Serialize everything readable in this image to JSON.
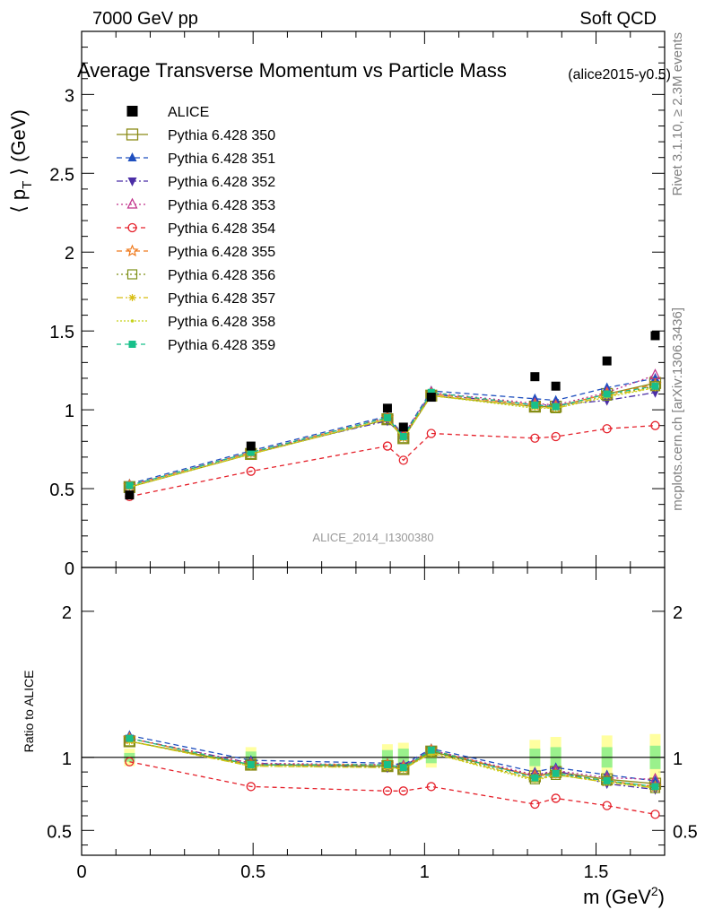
{
  "header": {
    "left": "7000 GeV pp",
    "right": "Soft QCD",
    "title": "Average Transverse Momentum vs Particle Mass",
    "analysis_tag": "(alice2015-y0.5)",
    "side_rivet": "Rivet 3.1.10, ≥ 2.3M events",
    "side_mcplots": "mcplots.cern.ch [arXiv:1306.3436]",
    "watermark": "ALICE_2014_I1300380"
  },
  "chart_data": [
    {
      "type": "scatter",
      "title": "Average Transverse Momentum vs Particle Mass",
      "ylabel": "⟨ p_T ⟩ (GeV)",
      "ylabel_parts": [
        "⟨ p",
        "T",
        " ⟩ (GeV)"
      ],
      "xlim": [
        0,
        1.7
      ],
      "ylim": [
        0,
        3.4
      ],
      "yticks": [
        0,
        0.5,
        1,
        1.5,
        2,
        2.5,
        3
      ],
      "ytick_labels": [
        "0",
        "0.5",
        "1",
        "1.5",
        "2",
        "2.5",
        "3"
      ],
      "legend_position": "top-left",
      "x": [
        0.1396,
        0.4937,
        0.8917,
        0.9383,
        1.0195,
        1.3217,
        1.3826,
        1.5318,
        1.6725
      ],
      "data": {
        "name": "ALICE",
        "color": "#000000",
        "values": [
          0.46,
          0.77,
          1.01,
          0.89,
          1.08,
          1.21,
          1.15,
          1.31,
          1.47
        ]
      },
      "series": [
        {
          "name": "Pythia 6.428 350",
          "color": "#8b8b16",
          "marker": "open-square-large",
          "dash": "",
          "values": [
            0.51,
            0.72,
            0.94,
            0.82,
            1.09,
            1.02,
            1.02,
            1.1,
            1.17
          ]
        },
        {
          "name": "Pythia 6.428 351",
          "color": "#1f4fbf",
          "marker": "filled-triangle-up",
          "dash": "6,4",
          "values": [
            0.53,
            0.74,
            0.96,
            0.84,
            1.12,
            1.07,
            1.06,
            1.14,
            1.2
          ]
        },
        {
          "name": "Pythia 6.428 352",
          "color": "#4b2ea6",
          "marker": "filled-triangle-down",
          "dash": "7,3,2,3",
          "values": [
            0.52,
            0.73,
            0.93,
            0.83,
            1.1,
            1.03,
            1.03,
            1.06,
            1.11
          ]
        },
        {
          "name": "Pythia 6.428 353",
          "color": "#c0308a",
          "marker": "open-triangle-up",
          "dash": "2,3",
          "values": [
            0.52,
            0.73,
            0.95,
            0.84,
            1.11,
            1.04,
            1.03,
            1.11,
            1.22
          ]
        },
        {
          "name": "Pythia 6.428 354",
          "color": "#e5202a",
          "marker": "open-circle",
          "dash": "5,4",
          "values": [
            0.45,
            0.61,
            0.77,
            0.68,
            0.85,
            0.82,
            0.83,
            0.88,
            0.9
          ]
        },
        {
          "name": "Pythia 6.428 355",
          "color": "#ef7a1d",
          "marker": "open-star",
          "dash": "6,4",
          "values": [
            0.52,
            0.73,
            0.95,
            0.83,
            1.1,
            1.03,
            1.02,
            1.1,
            1.16
          ]
        },
        {
          "name": "Pythia 6.428 356",
          "color": "#7d8f15",
          "marker": "open-square",
          "dash": "2,3",
          "values": [
            0.51,
            0.72,
            0.94,
            0.82,
            1.09,
            1.02,
            1.01,
            1.09,
            1.15
          ]
        },
        {
          "name": "Pythia 6.428 357",
          "color": "#d8bd12",
          "marker": "small-star",
          "dash": "7,3,2,3",
          "values": [
            0.51,
            0.72,
            0.94,
            0.82,
            1.09,
            1.02,
            1.01,
            1.09,
            1.14
          ]
        },
        {
          "name": "Pythia 6.428 358",
          "color": "#c6d21a",
          "marker": "dot",
          "dash": "2,2",
          "values": [
            0.51,
            0.72,
            0.94,
            0.82,
            1.09,
            1.01,
            1.01,
            1.08,
            1.14
          ]
        },
        {
          "name": "Pythia 6.428 359",
          "color": "#18c08a",
          "marker": "filled-square",
          "dash": "5,4",
          "values": [
            0.52,
            0.73,
            0.95,
            0.83,
            1.11,
            1.03,
            1.02,
            1.1,
            1.15
          ]
        }
      ]
    },
    {
      "type": "line",
      "ylabel": "Ratio to ALICE",
      "xlabel": "m (GeV²)",
      "xlabel_parts": [
        "m (GeV",
        "2",
        ")"
      ],
      "xlim": [
        0,
        1.7
      ],
      "ylim": [
        0.33,
        2.3
      ],
      "xticks": [
        0,
        0.5,
        1,
        1.5
      ],
      "xtick_labels": [
        "0",
        "0.5",
        "1",
        "1.5"
      ],
      "yticks": [
        0.5,
        1,
        2
      ],
      "ytick_labels": [
        "0.5",
        "1",
        "2"
      ],
      "reference_line": 1,
      "x": [
        0.1396,
        0.4937,
        0.8917,
        0.9383,
        1.0195,
        1.3217,
        1.3826,
        1.5318,
        1.6725
      ],
      "data_band": {
        "inner": [
          0.03,
          0.04,
          0.05,
          0.06,
          0.04,
          0.06,
          0.07,
          0.07,
          0.08
        ],
        "outer": [
          0.06,
          0.07,
          0.09,
          0.1,
          0.07,
          0.12,
          0.14,
          0.15,
          0.16
        ]
      },
      "series": [
        {
          "name": "Pythia 6.428 350",
          "values": [
            1.11,
            0.95,
            0.94,
            0.92,
            1.04,
            0.87,
            0.9,
            0.85,
            0.82
          ]
        },
        {
          "name": "Pythia 6.428 351",
          "values": [
            1.15,
            0.98,
            0.96,
            0.95,
            1.06,
            0.9,
            0.93,
            0.88,
            0.84
          ]
        },
        {
          "name": "Pythia 6.428 352",
          "values": [
            1.13,
            0.96,
            0.93,
            0.94,
            1.05,
            0.87,
            0.91,
            0.82,
            0.78
          ]
        },
        {
          "name": "Pythia 6.428 353",
          "values": [
            1.13,
            0.96,
            0.95,
            0.94,
            1.05,
            0.88,
            0.91,
            0.86,
            0.85
          ]
        },
        {
          "name": "Pythia 6.428 354",
          "values": [
            0.97,
            0.8,
            0.77,
            0.77,
            0.8,
            0.68,
            0.72,
            0.67,
            0.61
          ]
        },
        {
          "name": "Pythia 6.428 355",
          "values": [
            1.13,
            0.95,
            0.95,
            0.93,
            1.05,
            0.87,
            0.89,
            0.84,
            0.8
          ]
        },
        {
          "name": "Pythia 6.428 356",
          "values": [
            1.11,
            0.95,
            0.94,
            0.92,
            1.04,
            0.85,
            0.88,
            0.84,
            0.79
          ]
        },
        {
          "name": "Pythia 6.428 357",
          "values": [
            1.11,
            0.94,
            0.93,
            0.92,
            1.03,
            0.85,
            0.88,
            0.83,
            0.79
          ]
        },
        {
          "name": "Pythia 6.428 358",
          "values": [
            1.11,
            0.94,
            0.93,
            0.92,
            1.03,
            0.84,
            0.88,
            0.83,
            0.79
          ]
        },
        {
          "name": "Pythia 6.428 359",
          "values": [
            1.13,
            0.95,
            0.95,
            0.93,
            1.05,
            0.86,
            0.89,
            0.84,
            0.8
          ]
        }
      ]
    }
  ]
}
